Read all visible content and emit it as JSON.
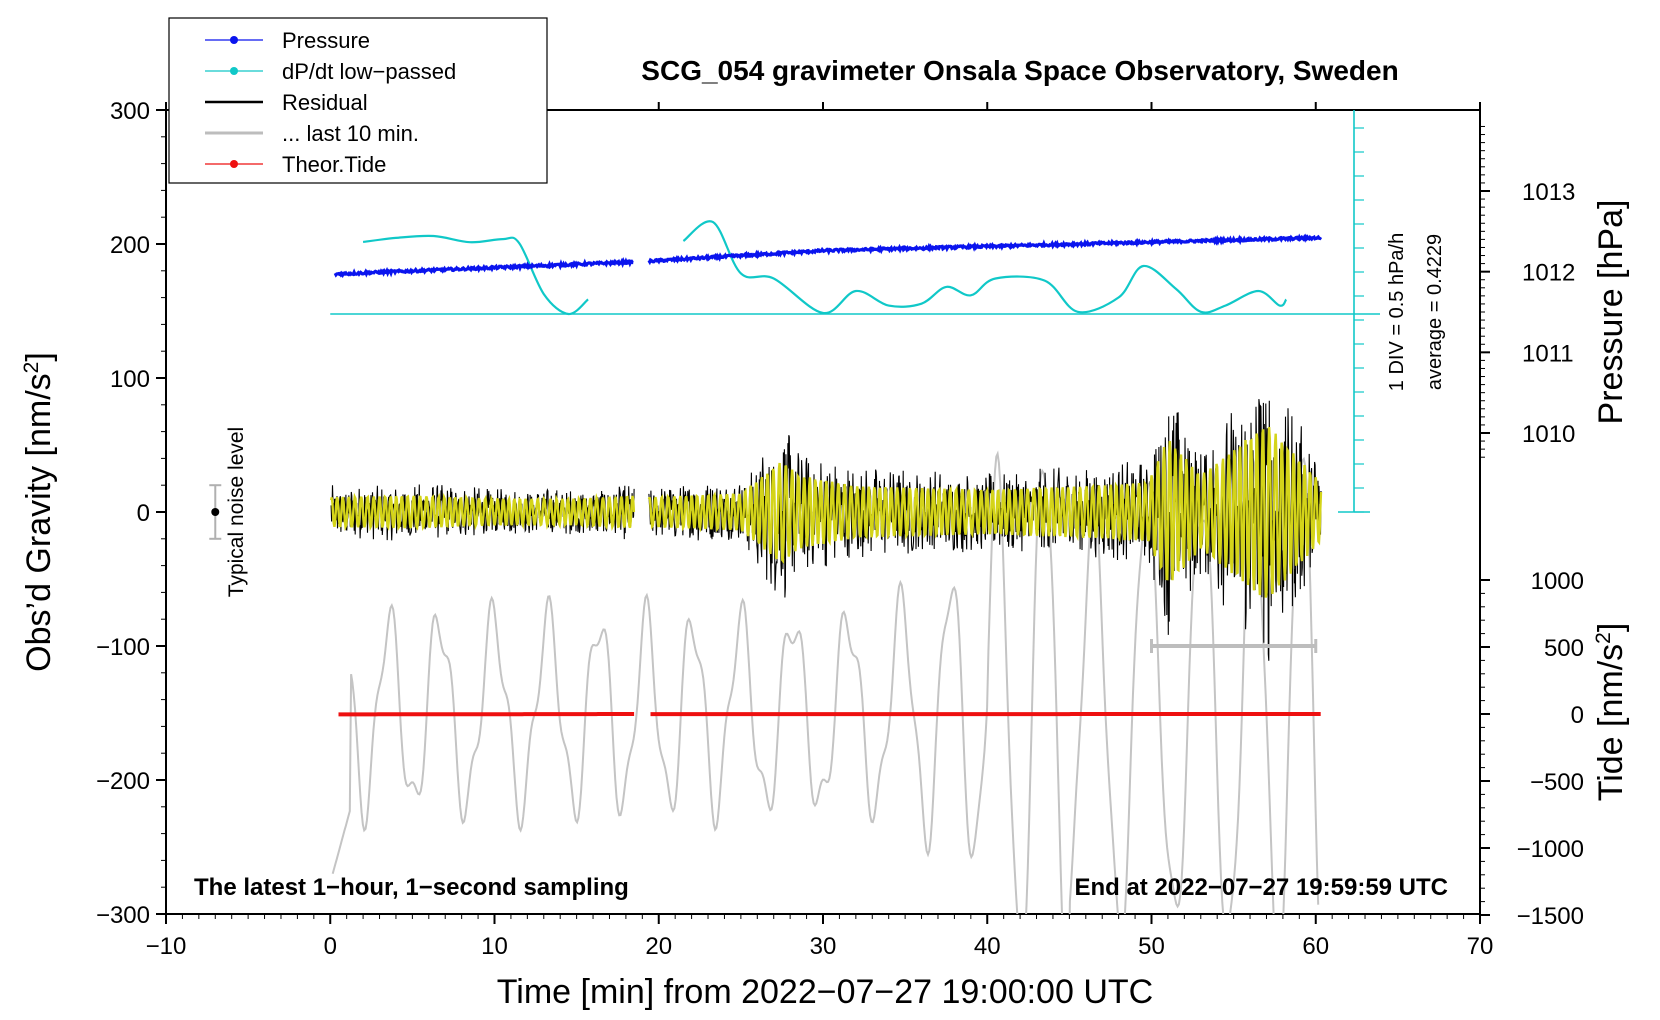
{
  "chart_data": {
    "type": "line",
    "title": "SCG_054 gravimeter Onsala Space Observatory, Sweden",
    "xlabel": "Time [min] from 2022−07−27 19:00:00 UTC",
    "ylabel_left": "Obs’d Gravity [nm/s",
    "ylabel_left_sup": "2",
    "ylabel_left_close": "]",
    "ylabel_pressure": "Pressure [hPa]",
    "ylabel_tide": "Tide [nm/s",
    "ylabel_tide_sup": "2",
    "ylabel_tide_close": "]",
    "xlim": [
      -10,
      70
    ],
    "ylim": [
      -300,
      300
    ],
    "x_ticks": [
      "−10",
      "0",
      "10",
      "20",
      "30",
      "40",
      "50",
      "60",
      "70"
    ],
    "y_ticks": [
      "300",
      "200",
      "100",
      "0",
      "−100",
      "−200",
      "−300"
    ],
    "pressure_ticks": [
      "1013",
      "1012",
      "1011",
      "1010"
    ],
    "tide_ticks": [
      "1000",
      "500",
      "0",
      "−500",
      "−1000",
      "−1500"
    ],
    "legend": [
      {
        "label": "Pressure",
        "color": "#0a14ee",
        "marker": true
      },
      {
        "label": "dP/dt low−passed",
        "color": "#10c8c8",
        "marker": true
      },
      {
        "label": "Residual",
        "color": "#000000",
        "marker": false
      },
      {
        "label": "... last 10 min.",
        "color": "#bdbdbd",
        "marker": false
      },
      {
        "label": "Theor.Tide",
        "color": "#ee1010",
        "marker": true
      }
    ],
    "annotations": {
      "bottom_left": "The latest 1−hour, 1−second sampling",
      "bottom_right": "End at 2022−07−27 19:59:59 UTC",
      "noise": "Typical noise level",
      "div_scale": "1 DIV = 0.5 hPa/h",
      "average": "average = 0.4229"
    },
    "gap_minutes": [
      18.5,
      19.4
    ],
    "series": [
      {
        "name": "Pressure",
        "unit": "hPa",
        "points": [
          [
            0.3,
            1011.97
          ],
          [
            18.5,
            1012.12
          ],
          [
            19.4,
            1012.13
          ],
          [
            30,
            1012.26
          ],
          [
            45,
            1012.34
          ],
          [
            60.3,
            1012.42
          ]
        ]
      },
      {
        "name": "dP/dt low-passed",
        "unit": "div",
        "points": [
          [
            2,
            3.0
          ],
          [
            4,
            3.17
          ],
          [
            6.3,
            3.25
          ],
          [
            8.5,
            2.99
          ],
          [
            10.5,
            3.12
          ],
          [
            11.5,
            2.96
          ],
          [
            13,
            0.83
          ],
          [
            14.5,
            0.0
          ],
          [
            15.7,
            0.61
          ],
          [
            21.5,
            3.04
          ],
          [
            23.3,
            3.83
          ],
          [
            25,
            1.69
          ],
          [
            27,
            1.48
          ],
          [
            30,
            0.04
          ],
          [
            32,
            0.96
          ],
          [
            34,
            0.35
          ],
          [
            36,
            0.43
          ],
          [
            37.5,
            1.13
          ],
          [
            39,
            0.78
          ],
          [
            40.5,
            1.48
          ],
          [
            43.5,
            1.39
          ],
          [
            45.5,
            0.09
          ],
          [
            48,
            0.69
          ],
          [
            49.5,
            2.0
          ],
          [
            51.5,
            1.04
          ],
          [
            53,
            0.09
          ],
          [
            54.5,
            0.35
          ],
          [
            56.5,
            0.96
          ],
          [
            57.8,
            0.35
          ],
          [
            58.2,
            0.61
          ]
        ]
      },
      {
        "name": "Residual",
        "unit": "nm/s2",
        "envelope": [
          [
            0,
            20
          ],
          [
            5,
            22
          ],
          [
            10,
            18
          ],
          [
            15,
            18
          ],
          [
            18.5,
            22
          ],
          [
            19.5,
            20
          ],
          [
            25,
            25
          ],
          [
            27.5,
            70
          ],
          [
            28.5,
            50
          ],
          [
            32,
            35
          ],
          [
            40,
            30
          ],
          [
            46,
            35
          ],
          [
            49.8,
            40
          ],
          [
            51,
            100
          ],
          [
            53,
            50
          ],
          [
            57,
            120
          ],
          [
            60.3,
            40
          ]
        ]
      },
      {
        "name": "Residual (last 10 min.)",
        "unit": "nm/s2",
        "extent": [
          50,
          60
        ],
        "level": -100
      },
      {
        "name": "Theor.Tide",
        "unit": "nm/s2",
        "points": [
          [
            0.5,
            -3
          ],
          [
            18.5,
            0
          ],
          [
            19.5,
            -1
          ],
          [
            60.3,
            0
          ]
        ]
      }
    ]
  }
}
